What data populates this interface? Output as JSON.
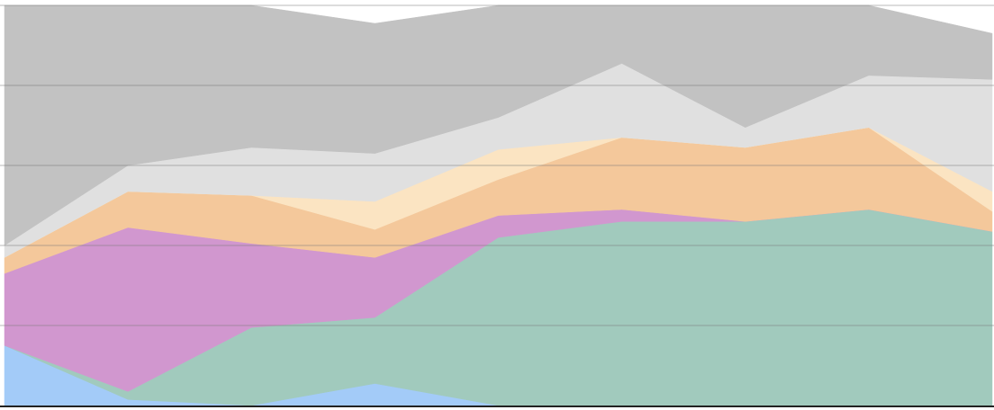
{
  "chart_data": {
    "type": "area",
    "title": "",
    "xlabel": "",
    "ylabel": "",
    "stacked": true,
    "x": [
      0,
      1,
      2,
      3,
      4,
      5,
      6,
      7,
      8
    ],
    "ylim": [
      0,
      100
    ],
    "yticks": [
      0,
      20,
      40,
      60,
      80,
      100
    ],
    "grid": true,
    "series": [
      {
        "values": [
          15,
          1.5,
          0,
          5.5,
          0,
          0,
          0,
          0,
          0
        ],
        "color": "#a3cbf8"
      },
      {
        "values": [
          0,
          2,
          19.5,
          16.5,
          42,
          46,
          46,
          49,
          43.5
        ],
        "color": "#a1cabd"
      },
      {
        "values": [
          18,
          41,
          21,
          15,
          5.5,
          3,
          0,
          0,
          0
        ],
        "color": "#d197cf"
      },
      {
        "values": [
          4,
          9,
          12,
          7,
          9,
          18,
          18.5,
          20.5,
          5
        ],
        "color": "#f4c89b"
      },
      {
        "values": [
          0,
          0,
          0,
          7,
          7.5,
          0,
          0,
          0,
          5
        ],
        "color": "#fbe4c2"
      },
      {
        "values": [
          3,
          6.5,
          12,
          12,
          8,
          18.5,
          5,
          13,
          28
        ],
        "color": "#e0e0e0"
      },
      {
        "values": [
          60,
          40,
          35.5,
          32.5,
          28,
          14.5,
          30.5,
          17.5,
          11.5
        ],
        "color": "#c2c2c2"
      }
    ]
  }
}
